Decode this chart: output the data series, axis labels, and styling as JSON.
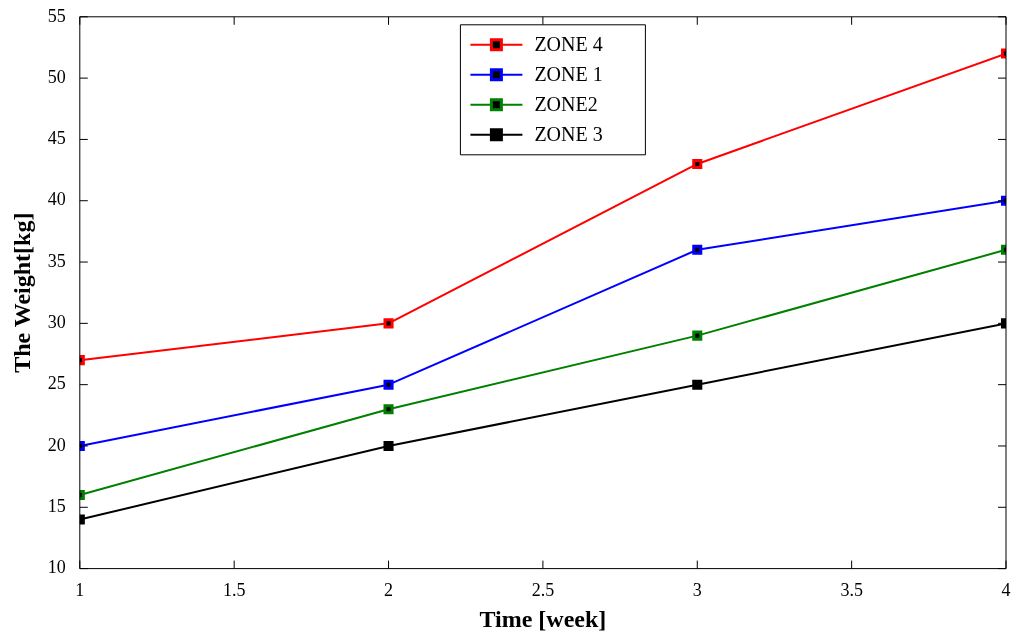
{
  "chart_data": {
    "type": "line",
    "xlabel": "Time [week]",
    "ylabel": "The Weight[kg]",
    "x": [
      1,
      2,
      3,
      4
    ],
    "series": [
      {
        "name": "ZONE 4",
        "color": "#ff0000",
        "values": [
          27,
          30,
          43,
          52
        ]
      },
      {
        "name": "ZONE 1",
        "color": "#0000ff",
        "values": [
          20,
          25,
          36,
          40
        ]
      },
      {
        "name": "ZONE2",
        "color": "#008000",
        "values": [
          16,
          23,
          29,
          36
        ]
      },
      {
        "name": "ZONE 3",
        "color": "#000000",
        "values": [
          14,
          20,
          25,
          30
        ]
      }
    ],
    "xlim": [
      1,
      4
    ],
    "xticks": [
      1,
      1.5,
      2,
      2.5,
      3,
      3.5,
      4
    ],
    "ylim": [
      10,
      55
    ],
    "yticks": [
      10,
      15,
      20,
      25,
      30,
      35,
      40,
      45,
      50,
      55
    ],
    "legend": "top",
    "marker": "square",
    "line_style": "solid",
    "grid": false
  }
}
